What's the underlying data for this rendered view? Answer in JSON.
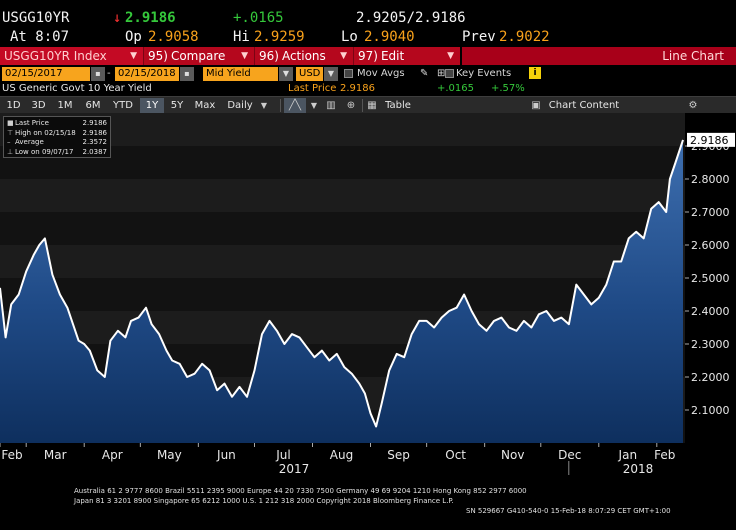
{
  "quote": {
    "ticker": "USGG10YR",
    "arrow": "↓",
    "last": "2.9186",
    "change": "+.0165",
    "bid_ask": "2.9205/2.9186",
    "time": "At 8:07",
    "open_label": "Op",
    "open": "2.9058",
    "high_label": "Hi",
    "high": "2.9259",
    "low_label": "Lo",
    "low": "2.9040",
    "prev_label": "Prev",
    "prev": "2.9022"
  },
  "function_bar": {
    "security": "USGG10YR Index",
    "compare_num": "95)",
    "compare": "Compare",
    "actions_num": "96)",
    "actions": "Actions",
    "edit_num": "97)",
    "edit": "Edit",
    "view": "Line Chart"
  },
  "options": {
    "start_date": "02/15/2017",
    "end_date": "02/15/2018",
    "field": "Mid Yield",
    "currency": "USD",
    "mov_avgs": "Mov Avgs",
    "key_events": "Key Events"
  },
  "description": {
    "name": "US Generic Govt 10 Year Yield",
    "last_price_label": "Last Price",
    "last_price": "2.9186",
    "change": "+.0165",
    "pct_change": "+.57%"
  },
  "toolbar": {
    "ranges": [
      "1D",
      "3D",
      "1M",
      "6M",
      "YTD",
      "1Y",
      "5Y",
      "Max"
    ],
    "active_range": "1Y",
    "frequency": "Daily",
    "table": "Table",
    "chart_content": "Chart Content"
  },
  "legend": {
    "rows": [
      {
        "label": "Last Price",
        "value": "2.9186"
      },
      {
        "label": "High on 02/15/18",
        "value": "2.9186"
      },
      {
        "label": "Average",
        "value": "2.3572"
      },
      {
        "label": "Low on 09/07/17",
        "value": "2.0387"
      }
    ]
  },
  "chart_data": {
    "type": "area",
    "title": "",
    "xlabel": "",
    "ylabel": "",
    "ylim": [
      2.0,
      3.0
    ],
    "yticks": [
      "2.1000",
      "2.2000",
      "2.3000",
      "2.4000",
      "2.5000",
      "2.6000",
      "2.7000",
      "2.8000",
      "2.9000"
    ],
    "ytick_values": [
      2.1,
      2.2,
      2.3,
      2.4,
      2.5,
      2.6,
      2.7,
      2.8,
      2.9
    ],
    "last_label": "2.9186",
    "months": [
      "Feb",
      "Mar",
      "Apr",
      "May",
      "Jun",
      "Jul",
      "Aug",
      "Sep",
      "Oct",
      "Nov",
      "Dec",
      "Jan",
      "Feb"
    ],
    "years": [
      "2017",
      "2018"
    ],
    "x_range": [
      0,
      365
    ],
    "month_start_day": [
      0,
      14,
      45,
      75,
      106,
      136,
      167,
      198,
      228,
      259,
      289,
      320,
      351
    ],
    "series": [
      {
        "x": [
          0,
          3,
          6,
          10,
          14,
          18,
          21,
          24,
          28,
          32,
          36,
          39,
          42,
          45,
          48,
          52,
          56,
          59,
          63,
          67,
          70,
          74,
          78,
          81,
          85,
          89,
          92,
          96,
          100,
          104,
          108,
          112,
          116,
          120,
          124,
          128,
          132,
          136,
          140,
          144,
          148,
          152,
          156,
          160,
          164,
          168,
          172,
          176,
          180,
          184,
          188,
          192,
          195,
          198,
          201,
          204,
          208,
          212,
          216,
          220,
          224,
          228,
          232,
          236,
          240,
          244,
          248,
          252,
          256,
          260,
          264,
          268,
          272,
          276,
          280,
          284,
          288,
          292,
          296,
          300,
          304,
          308,
          312,
          316,
          320,
          324,
          328,
          332,
          336,
          340,
          344,
          348,
          352,
          356,
          358,
          361,
          365
        ],
        "y": [
          2.47,
          2.32,
          2.42,
          2.45,
          2.52,
          2.57,
          2.6,
          2.62,
          2.51,
          2.45,
          2.41,
          2.36,
          2.31,
          2.3,
          2.28,
          2.22,
          2.2,
          2.31,
          2.34,
          2.32,
          2.37,
          2.38,
          2.41,
          2.36,
          2.33,
          2.28,
          2.25,
          2.24,
          2.2,
          2.21,
          2.24,
          2.22,
          2.16,
          2.18,
          2.14,
          2.17,
          2.14,
          2.22,
          2.33,
          2.37,
          2.34,
          2.3,
          2.33,
          2.32,
          2.29,
          2.26,
          2.28,
          2.25,
          2.27,
          2.23,
          2.21,
          2.18,
          2.15,
          2.09,
          2.05,
          2.12,
          2.22,
          2.27,
          2.26,
          2.33,
          2.37,
          2.37,
          2.35,
          2.38,
          2.4,
          2.41,
          2.45,
          2.4,
          2.36,
          2.34,
          2.37,
          2.38,
          2.35,
          2.34,
          2.37,
          2.35,
          2.39,
          2.4,
          2.37,
          2.38,
          2.36,
          2.48,
          2.45,
          2.42,
          2.44,
          2.48,
          2.55,
          2.55,
          2.62,
          2.64,
          2.62,
          2.71,
          2.73,
          2.7,
          2.8,
          2.85,
          2.9186
        ]
      }
    ],
    "legend_position": "top-left"
  },
  "footer": {
    "line1": "Australia 61 2 9777 8600 Brazil 5511 2395 9000 Europe 44 20 7330 7500 Germany 49 69 9204 1210 Hong Kong 852 2977 6000",
    "line2": "Japan 81 3 3201 8900         Singapore 65 6212 1000         U.S. 1 212 318 2000                    Copyright 2018 Bloomberg Finance L.P.",
    "line3": "SN 529667 G410-540-0 15-Feb-18  8:07:29 CET  GMT+1:00"
  }
}
